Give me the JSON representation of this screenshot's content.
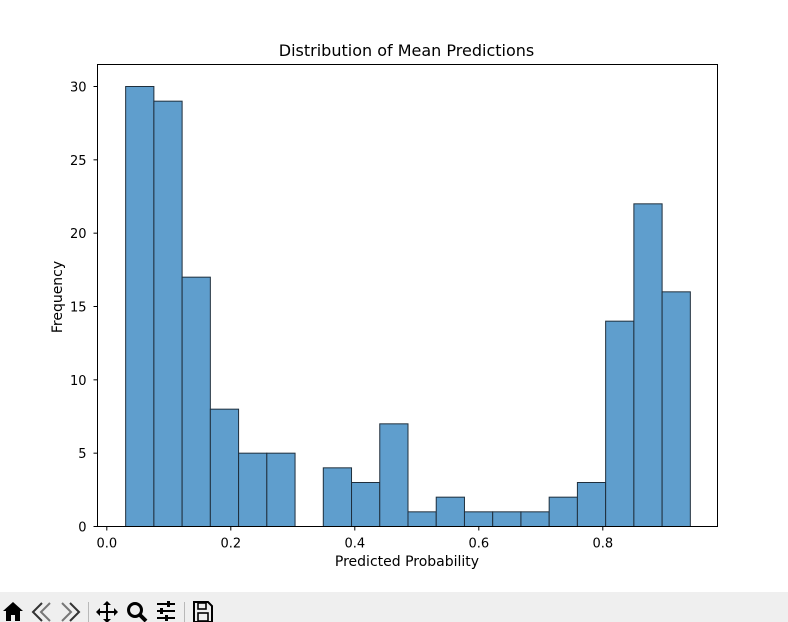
{
  "chart_data": {
    "type": "bar",
    "title": "Distribution of Mean Predictions",
    "xlabel": "Predicted Probability",
    "ylabel": "Frequency",
    "xlim": [
      -0.015,
      0.985
    ],
    "ylim": [
      0,
      31.5
    ],
    "xticks": [
      0.0,
      0.2,
      0.4,
      0.6,
      0.8
    ],
    "xtick_labels": [
      "0.0",
      "0.2",
      "0.4",
      "0.6",
      "0.8"
    ],
    "yticks": [
      0,
      5,
      10,
      15,
      20,
      25,
      30
    ],
    "ytick_labels": [
      "0",
      "5",
      "10",
      "15",
      "20",
      "25",
      "30"
    ],
    "bin_start": 0.0304,
    "bin_width": 0.04554,
    "counts": [
      30,
      29,
      17,
      8,
      5,
      5,
      0,
      4,
      3,
      7,
      1,
      2,
      1,
      1,
      1,
      2,
      3,
      14,
      22,
      16
    ],
    "bar_color": "#5f9ecd",
    "edge_color": "#1f2f3d",
    "grid": false
  },
  "toolbar": {
    "icons": [
      "home-icon",
      "back-icon",
      "forward-icon",
      "pan-icon",
      "zoom-icon",
      "configure-icon",
      "save-icon"
    ]
  }
}
